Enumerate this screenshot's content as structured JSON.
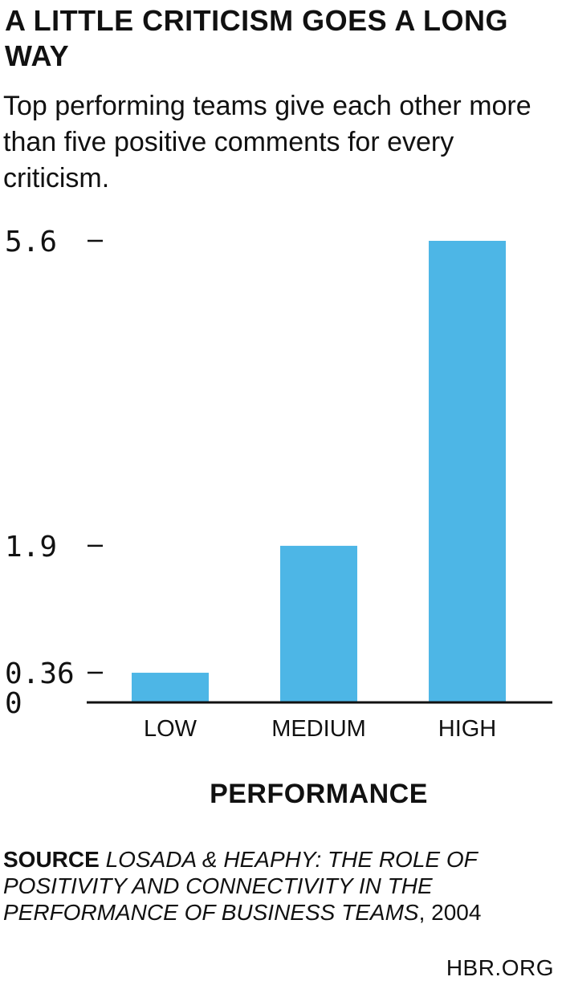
{
  "title": "A LITTLE CRITICISM GOES A LONG WAY",
  "subtitle": "Top performing teams give each other more than five positive comments for every criticism.",
  "chart_data": {
    "type": "bar",
    "categories": [
      "LOW",
      "MEDIUM",
      "HIGH"
    ],
    "values": [
      0.36,
      1.9,
      5.6
    ],
    "yticks": [
      {
        "value": 0,
        "label": "0",
        "dash": false
      },
      {
        "value": 0.36,
        "label": "0.36",
        "dash": true
      },
      {
        "value": 1.9,
        "label": "1.9",
        "dash": true
      },
      {
        "value": 5.6,
        "label": "5.6",
        "dash": true
      }
    ],
    "xlabel": "PERFORMANCE",
    "ylabel": "",
    "ylim": [
      0,
      5.6
    ],
    "grid": false,
    "colors": {
      "bar": "#4db6e6",
      "axis": "#111111"
    }
  },
  "source": {
    "label": "SOURCE",
    "title": "LOSADA & HEAPHY: THE ROLE OF POSITIVITY AND CONNECTIVITY IN THE PERFORMANCE OF BUSINESS TEAMS",
    "year": ", 2004"
  },
  "credit": "HBR.ORG"
}
